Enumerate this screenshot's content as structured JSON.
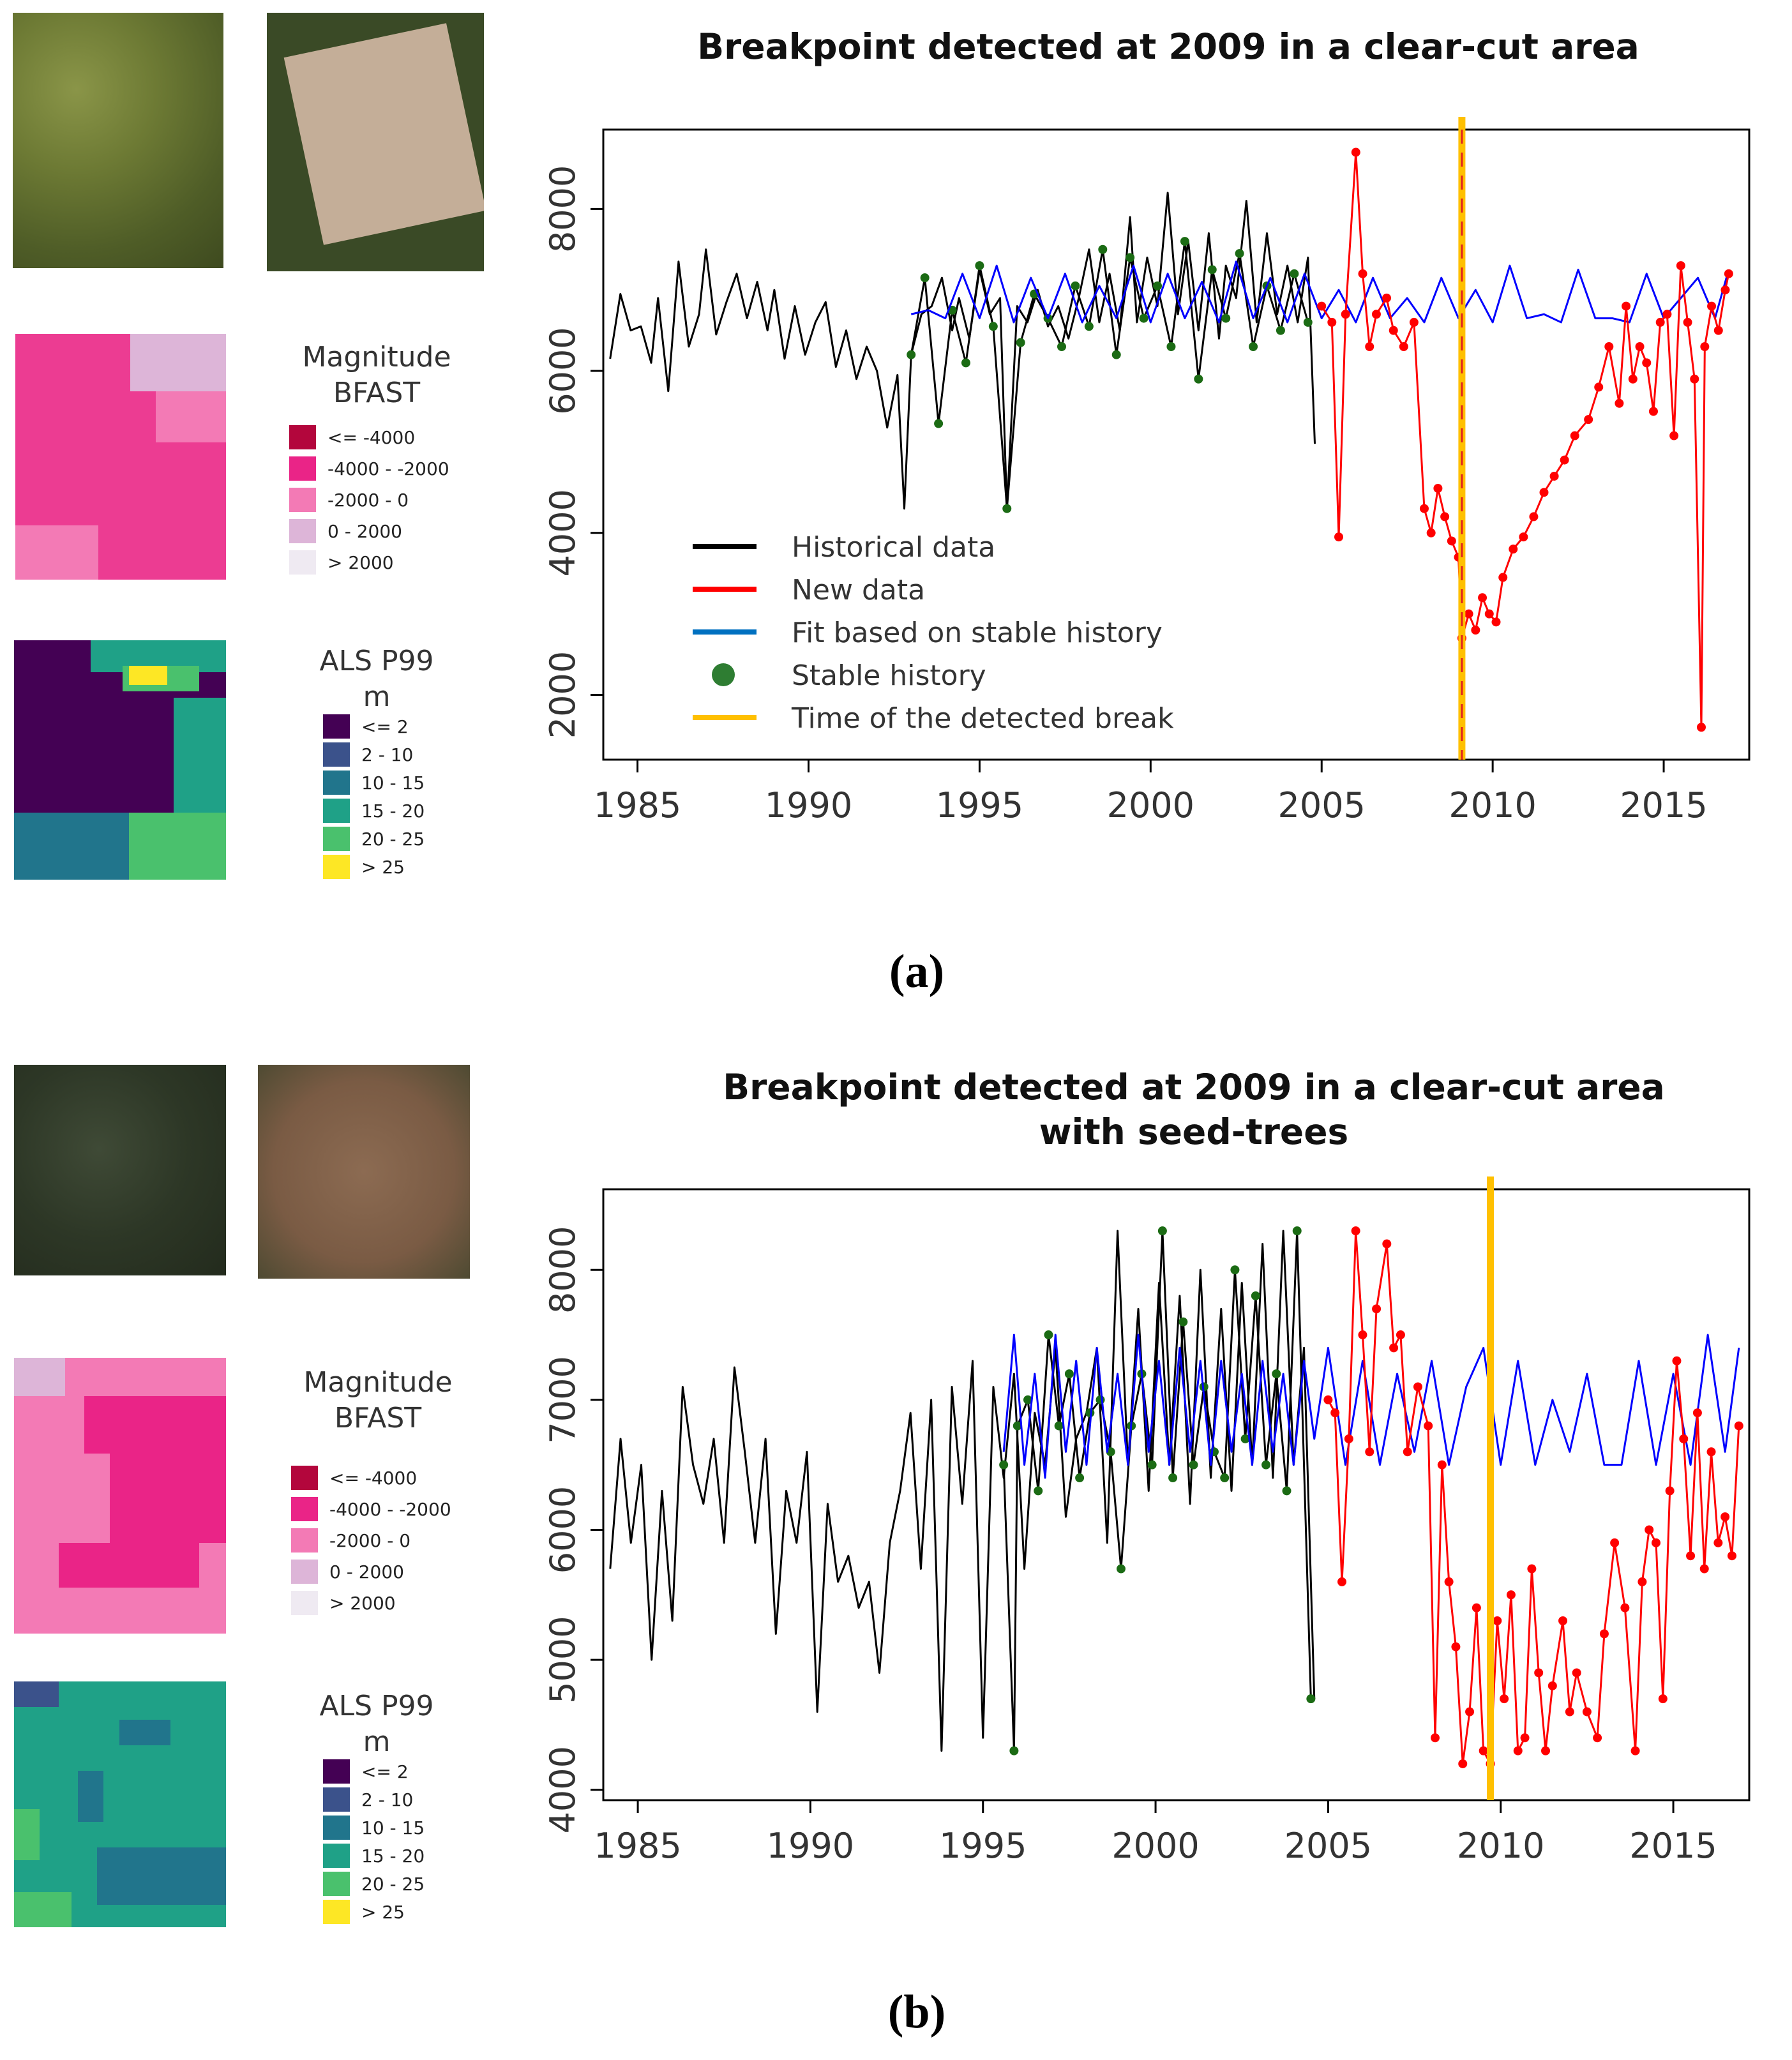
{
  "panel_labels": [
    "(a)",
    "(b)"
  ],
  "magnitude_legend": {
    "title_line1": "Magnitude",
    "title_line2": "BFAST",
    "entries": [
      {
        "label": "<= -4000",
        "color": "#b3063c"
      },
      {
        "label": "-4000 - -2000",
        "color": "#ea2487"
      },
      {
        "label": "-2000 - 0",
        "color": "#f37ab5"
      },
      {
        "label": "0 - 2000",
        "color": "#ddb5d8"
      },
      {
        "label": "> 2000",
        "color": "#efeaf2"
      }
    ]
  },
  "als_legend": {
    "title_line1": "ALS P99",
    "title_line2": "m",
    "entries": [
      {
        "label": "<= 2",
        "color": "#440154"
      },
      {
        "label": "2 - 10",
        "color": "#3b528b"
      },
      {
        "label": "10 - 15",
        "color": "#21758c"
      },
      {
        "label": "15 - 20",
        "color": "#1fa187"
      },
      {
        "label": "20 - 25",
        "color": "#4ac16d"
      },
      {
        "label": "> 25",
        "color": "#fde725"
      }
    ]
  },
  "series_legend": [
    {
      "label": "Historical data",
      "color": "#000000",
      "kind": "line"
    },
    {
      "label": "New data",
      "color": "#ff0000",
      "kind": "line"
    },
    {
      "label": "Fit based on stable history",
      "color": "#0070c0",
      "kind": "line"
    },
    {
      "label": "Stable history",
      "color": "#2e7d32",
      "kind": "dot"
    },
    {
      "label": "Time of the detected break",
      "color": "#ffc000",
      "kind": "line"
    }
  ],
  "chart_data": [
    {
      "type": "line",
      "title": "Breakpoint detected at 2009 in a clear-cut area",
      "xlabel": "",
      "ylabel": "",
      "xlim": [
        1984,
        2017.5
      ],
      "ylim": [
        1200,
        8980
      ],
      "x_ticks": [
        1985,
        1990,
        1995,
        2000,
        2005,
        2010,
        2015
      ],
      "y_ticks": [
        2000,
        4000,
        6000,
        8000
      ],
      "break_year": 2009.1,
      "colors": {
        "historical": "#000000",
        "new": "#ff0000",
        "fit": "#0000ff",
        "stable": "#1b6b14",
        "break": "#ffc000"
      },
      "series": [
        {
          "name": "Historical data",
          "x": [
            1984.2,
            1984.5,
            1984.8,
            1985.1,
            1985.4,
            1985.6,
            1985.9,
            1986.2,
            1986.5,
            1986.8,
            1987.0,
            1987.3,
            1987.6,
            1987.9,
            1988.2,
            1988.5,
            1988.8,
            1989.0,
            1989.3,
            1989.6,
            1989.9,
            1990.2,
            1990.5,
            1990.8,
            1991.1,
            1991.4,
            1991.7,
            1992.0,
            1992.3,
            1992.6,
            1992.8,
            1993.0,
            1993.3,
            1993.6,
            1993.9,
            1994.2,
            1994.4,
            1994.7,
            1995.0,
            1995.3,
            1995.6,
            1995.8,
            1996.1,
            1996.4,
            1996.7,
            1997.0,
            1997.3,
            1997.6,
            1997.9,
            1998.2,
            1998.5,
            1998.8,
            1999.1,
            1999.4,
            1999.6,
            1999.9,
            2000.2,
            2000.5,
            2000.8,
            2001.1,
            2001.4,
            2001.7,
            2002.0,
            2002.2,
            2002.5,
            2002.8,
            2003.1,
            2003.4,
            2003.7,
            2004.0,
            2004.3,
            2004.6,
            2004.8
          ],
          "y": [
            6150,
            6950,
            6500,
            6550,
            6100,
            6900,
            5750,
            7350,
            6300,
            6700,
            7500,
            6450,
            6850,
            7200,
            6650,
            7100,
            6500,
            7000,
            6150,
            6800,
            6200,
            6600,
            6850,
            6050,
            6500,
            5900,
            6300,
            6000,
            5300,
            5950,
            4300,
            6200,
            6700,
            6800,
            7150,
            6500,
            6900,
            6400,
            7250,
            6700,
            6900,
            4300,
            6800,
            6600,
            7000,
            6550,
            6800,
            6400,
            6900,
            7500,
            6600,
            7200,
            6500,
            7900,
            6600,
            7400,
            6800,
            8200,
            6700,
            7600,
            6500,
            7700,
            6400,
            7300,
            6900,
            8100,
            6600,
            7700,
            6700,
            7300,
            6600,
            7400,
            5100
          ]
        },
        {
          "name": "New data",
          "x": [
            2005.0,
            2005.3,
            2005.5,
            2005.7,
            2006.0,
            2006.2,
            2006.4,
            2006.6,
            2006.9,
            2007.1,
            2007.4,
            2007.7,
            2008.0,
            2008.2,
            2008.4,
            2008.6,
            2008.8,
            2009.0,
            2009.1,
            2009.3,
            2009.5,
            2009.7,
            2009.9,
            2010.1,
            2010.3,
            2010.6,
            2010.9,
            2011.2,
            2011.5,
            2011.8,
            2012.1,
            2012.4,
            2012.8,
            2013.1,
            2013.4,
            2013.7,
            2013.9,
            2014.1,
            2014.3,
            2014.5,
            2014.7,
            2014.9,
            2015.1,
            2015.3,
            2015.5,
            2015.7,
            2015.9,
            2016.1,
            2016.2,
            2016.4,
            2016.6,
            2016.8,
            2016.9
          ],
          "y": [
            6800,
            6600,
            3950,
            6700,
            8700,
            7200,
            6300,
            6700,
            6900,
            6500,
            6300,
            6600,
            4300,
            4000,
            4550,
            4200,
            3900,
            3700,
            2700,
            3000,
            2800,
            3200,
            3000,
            2900,
            3450,
            3800,
            3950,
            4200,
            4500,
            4700,
            4900,
            5200,
            5400,
            5800,
            6300,
            5600,
            6800,
            5900,
            6300,
            6100,
            5500,
            6600,
            6700,
            5200,
            7300,
            6600,
            5900,
            1600,
            6300,
            6800,
            6500,
            7000,
            7200
          ]
        },
        {
          "name": "Fit based on stable history",
          "x": [
            1993.0,
            1993.5,
            1994.0,
            1994.5,
            1995.0,
            1995.5,
            1996.0,
            1996.5,
            1997.0,
            1997.5,
            1998.0,
            1998.5,
            1999.0,
            1999.5,
            2000.0,
            2000.5,
            2001.0,
            2001.5,
            2002.0,
            2002.5,
            2003.0,
            2003.5,
            2004.0,
            2004.5,
            2005.0,
            2005.5,
            2006.0,
            2006.5,
            2007.0,
            2007.5,
            2008.0,
            2008.5,
            2009.0,
            2009.5,
            2010.0,
            2010.5,
            2011.0,
            2011.5,
            2012.0,
            2012.5,
            2013.0,
            2013.5,
            2014.0,
            2014.5,
            2015.0,
            2015.5,
            2016.0,
            2016.5,
            2016.9
          ],
          "y": [
            6700,
            6750,
            6650,
            7200,
            6650,
            7300,
            6600,
            7150,
            6650,
            7200,
            6600,
            7050,
            6650,
            7300,
            6600,
            7200,
            6650,
            7100,
            6600,
            7350,
            6650,
            7150,
            6600,
            7200,
            6650,
            7000,
            6600,
            7150,
            6650,
            6900,
            6600,
            7150,
            6650,
            7000,
            6600,
            7300,
            6650,
            6700,
            6600,
            7250,
            6650,
            6650,
            6600,
            7200,
            6650,
            6900,
            7150,
            6650,
            7250
          ]
        },
        {
          "name": "Stable history",
          "x": [
            1993.0,
            1993.4,
            1993.8,
            1994.2,
            1994.6,
            1995.0,
            1995.4,
            1995.8,
            1996.2,
            1996.6,
            1997.0,
            1997.4,
            1997.8,
            1998.2,
            1998.6,
            1999.0,
            1999.4,
            1999.8,
            2000.2,
            2000.6,
            2001.0,
            2001.4,
            2001.8,
            2002.2,
            2002.6,
            2003.0,
            2003.4,
            2003.8,
            2004.2,
            2004.6
          ],
          "y": [
            6200,
            7150,
            5350,
            6750,
            6100,
            7300,
            6550,
            4300,
            6350,
            6950,
            6650,
            6300,
            7050,
            6550,
            7500,
            6200,
            7400,
            6650,
            7050,
            6300,
            7600,
            5900,
            7250,
            6650,
            7450,
            6300,
            7050,
            6500,
            7200,
            6600
          ]
        }
      ]
    },
    {
      "type": "line",
      "title": "Breakpoint detected at 2009 in a clear-cut area with seed-trees",
      "xlabel": "",
      "ylabel": "",
      "xlim": [
        1984,
        2017.2
      ],
      "ylim": [
        3920,
        8620
      ],
      "x_ticks": [
        1985,
        1990,
        1995,
        2000,
        2005,
        2010,
        2015
      ],
      "y_ticks": [
        4000,
        5000,
        6000,
        7000,
        8000
      ],
      "break_year": 2009.7,
      "colors": {
        "historical": "#000000",
        "new": "#ff0000",
        "fit": "#0000ff",
        "stable": "#1b6b14",
        "break": "#ffc000"
      },
      "series": [
        {
          "name": "Historical data",
          "x": [
            1984.2,
            1984.5,
            1984.8,
            1985.1,
            1985.4,
            1985.7,
            1986.0,
            1986.3,
            1986.6,
            1986.9,
            1987.2,
            1987.5,
            1987.8,
            1988.1,
            1988.4,
            1988.7,
            1989.0,
            1989.3,
            1989.6,
            1989.9,
            1990.2,
            1990.5,
            1990.8,
            1991.1,
            1991.4,
            1991.7,
            1992.0,
            1992.3,
            1992.6,
            1992.9,
            1993.2,
            1993.5,
            1993.8,
            1994.1,
            1994.4,
            1994.7,
            1995.0,
            1995.3,
            1995.6,
            1995.9,
            1996.2,
            1996.5,
            1996.8,
            1997.1,
            1997.4,
            1997.7,
            1998.0,
            1998.3,
            1998.6,
            1998.9,
            1999.2,
            1999.5,
            1999.8,
            2000.1,
            2000.4,
            2000.7,
            2001.0,
            2001.3,
            2001.6,
            2001.9,
            2002.2,
            2002.5,
            2002.8,
            2003.1,
            2003.4,
            2003.7,
            2004.0,
            2004.3,
            2004.6
          ],
          "y": [
            5700,
            6700,
            5900,
            6500,
            5000,
            6300,
            5300,
            7100,
            6500,
            6200,
            6700,
            5900,
            7250,
            6600,
            5900,
            6700,
            5200,
            6300,
            5900,
            6600,
            4600,
            6200,
            5600,
            5800,
            5400,
            5600,
            4900,
            5900,
            6300,
            6900,
            5700,
            7000,
            4300,
            7100,
            6200,
            7300,
            4400,
            7100,
            6400,
            7200,
            5700,
            6900,
            6500,
            7400,
            6100,
            6700,
            6900,
            7400,
            5900,
            8300,
            6500,
            7700,
            6300,
            7900,
            6500,
            7800,
            6200,
            8000,
            6400,
            7700,
            6300,
            7900,
            6500,
            8200,
            6400,
            8300,
            6500,
            7400,
            4700
          ]
        },
        {
          "name": "New data",
          "x": [
            2005.0,
            2005.2,
            2005.4,
            2005.6,
            2005.8,
            2006.0,
            2006.2,
            2006.4,
            2006.7,
            2006.9,
            2007.1,
            2007.3,
            2007.6,
            2007.9,
            2008.1,
            2008.3,
            2008.5,
            2008.7,
            2008.9,
            2009.1,
            2009.3,
            2009.5,
            2009.7,
            2009.9,
            2010.1,
            2010.3,
            2010.5,
            2010.7,
            2010.9,
            2011.1,
            2011.3,
            2011.5,
            2011.8,
            2012.0,
            2012.2,
            2012.5,
            2012.8,
            2013.0,
            2013.3,
            2013.6,
            2013.9,
            2014.1,
            2014.3,
            2014.5,
            2014.7,
            2014.9,
            2015.1,
            2015.3,
            2015.5,
            2015.7,
            2015.9,
            2016.1,
            2016.3,
            2016.5,
            2016.7,
            2016.9
          ],
          "y": [
            7000,
            6900,
            5600,
            6700,
            8300,
            7500,
            6600,
            7700,
            8200,
            7400,
            7500,
            6600,
            7100,
            6800,
            4400,
            6500,
            5600,
            5100,
            4200,
            4600,
            5400,
            4300,
            4200,
            5300,
            4700,
            5500,
            4300,
            4400,
            5700,
            4900,
            4300,
            4800,
            5300,
            4600,
            4900,
            4600,
            4400,
            5200,
            5900,
            5400,
            4300,
            5600,
            6000,
            5900,
            4700,
            6300,
            7300,
            6700,
            5800,
            6900,
            5700,
            6600,
            5900,
            6100,
            5800,
            6800
          ]
        },
        {
          "name": "Fit based on stable history",
          "x": [
            1995.6,
            1995.9,
            1996.2,
            1996.5,
            1996.8,
            1997.1,
            1997.4,
            1997.7,
            1998.0,
            1998.3,
            1998.6,
            1998.9,
            1999.2,
            1999.5,
            1999.8,
            2000.1,
            2000.4,
            2000.7,
            2001.0,
            2001.3,
            2001.6,
            2001.9,
            2002.2,
            2002.5,
            2002.8,
            2003.1,
            2003.4,
            2003.7,
            2004.0,
            2004.3,
            2004.6,
            2005.0,
            2005.5,
            2006.0,
            2006.5,
            2007.0,
            2007.5,
            2008.0,
            2008.5,
            2009.0,
            2009.5,
            2010.0,
            2010.5,
            2011.0,
            2011.5,
            2012.0,
            2012.5,
            2013.0,
            2013.5,
            2014.0,
            2014.5,
            2015.0,
            2015.5,
            2016.0,
            2016.5,
            2016.9
          ],
          "y": [
            6600,
            7500,
            6500,
            7200,
            6400,
            7500,
            6600,
            7300,
            6500,
            7400,
            6600,
            7200,
            6500,
            7500,
            6600,
            7300,
            6500,
            7400,
            6600,
            7300,
            6500,
            7300,
            6600,
            7200,
            6500,
            7300,
            6600,
            7200,
            6500,
            7300,
            6700,
            7400,
            6500,
            7300,
            6500,
            7200,
            6600,
            7300,
            6500,
            7100,
            7400,
            6500,
            7300,
            6500,
            7000,
            6600,
            7200,
            6500,
            6500,
            7300,
            6500,
            7200,
            6500,
            7500,
            6600,
            7400
          ]
        },
        {
          "name": "Stable history",
          "x": [
            1995.6,
            1995.9,
            1996.0,
            1996.3,
            1996.6,
            1996.9,
            1997.2,
            1997.5,
            1997.8,
            1998.1,
            1998.4,
            1998.7,
            1999.0,
            1999.3,
            1999.6,
            1999.9,
            2000.2,
            2000.5,
            2000.8,
            2001.1,
            2001.4,
            2001.7,
            2002.0,
            2002.3,
            2002.6,
            2002.9,
            2003.2,
            2003.5,
            2003.8,
            2004.1,
            2004.5
          ],
          "y": [
            6500,
            4300,
            6800,
            7000,
            6300,
            7500,
            6800,
            7200,
            6400,
            6900,
            7000,
            6600,
            5700,
            6800,
            7200,
            6500,
            8300,
            6400,
            7600,
            6500,
            7100,
            6600,
            6400,
            8000,
            6700,
            7800,
            6500,
            7200,
            6300,
            8300,
            4700
          ]
        }
      ]
    }
  ]
}
